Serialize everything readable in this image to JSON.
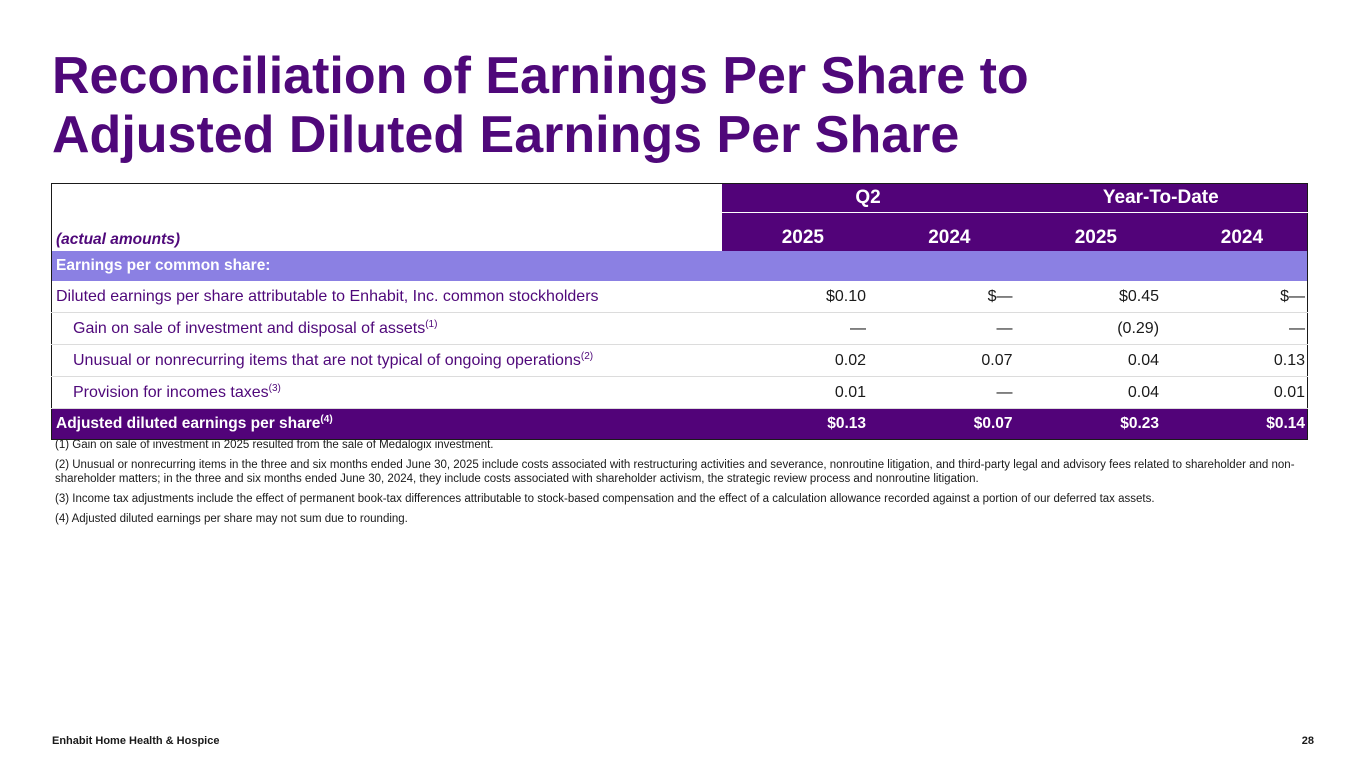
{
  "title": {
    "line1": "Reconciliation of Earnings Per Share to",
    "line2": "Adjusted Diluted Earnings Per Share"
  },
  "table": {
    "amounts_label": "(actual amounts)",
    "groups": [
      "Q2",
      "Year-To-Date"
    ],
    "years": [
      "2025",
      "2024",
      "2025",
      "2024"
    ],
    "section_label": "Earnings per common share:",
    "rows": [
      {
        "label": "Diluted earnings per share attributable to Enhabit, Inc. common stockholders",
        "sup": "",
        "values": [
          "$0.10",
          "$—",
          "$0.45",
          "$—"
        ]
      },
      {
        "label": "Gain on sale of investment and disposal of assets",
        "sup": "(1)",
        "values": [
          "—",
          "—",
          "(0.29)",
          "—"
        ]
      },
      {
        "label": "Unusual or nonrecurring items that are not typical of ongoing operations",
        "sup": "(2)",
        "values": [
          "0.02",
          "0.07",
          "0.04",
          "0.13"
        ]
      },
      {
        "label": "Provision for incomes taxes",
        "sup": "(3)",
        "values": [
          "0.01",
          "—",
          "0.04",
          "0.01"
        ]
      }
    ],
    "total": {
      "label": "Adjusted diluted earnings per share",
      "sup": "(4)",
      "values": [
        "$0.13",
        "$0.07",
        "$0.23",
        "$0.14"
      ]
    }
  },
  "footnotes": [
    "(1) Gain on sale of investment in 2025 resulted from the sale of Medalogix investment.",
    "(2) Unusual or nonrecurring items in the three and six months ended June 30, 2025 include costs associated with restructuring activities and severance, nonroutine litigation, and third-party legal and advisory fees related to shareholder and non-shareholder matters; in the three and six months ended June 30, 2024, they include costs associated with shareholder activism, the strategic review process and nonroutine litigation.",
    "(3) Income tax adjustments include the effect of permanent book-tax differences attributable to stock-based compensation and the effect of a calculation allowance recorded against a portion of our deferred tax assets.",
    "(4) Adjusted diluted earnings per share may not sum due to rounding."
  ],
  "footer": {
    "company": "Enhabit Home Health & Hospice",
    "page_number": "28"
  },
  "colors": {
    "brand_purple": "#520379",
    "title_purple": "#4f087a",
    "section_lavender": "#8b80e3"
  }
}
